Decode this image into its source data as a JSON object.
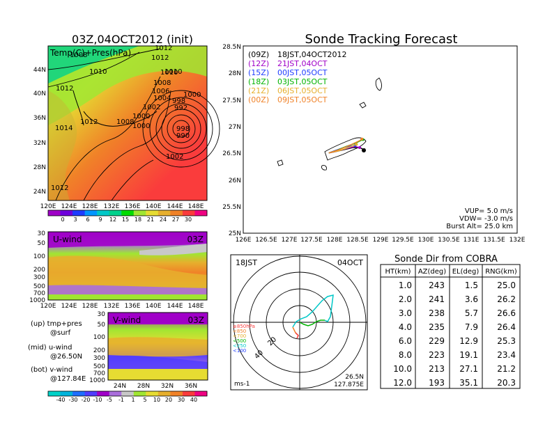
{
  "colors": {
    "temp_scale": [
      "#a000c8",
      "#6e00dc",
      "#1e3cff",
      "#0096ff",
      "#00c8c8",
      "#00d28c",
      "#00dc00",
      "#a0e632",
      "#e6dc32",
      "#e6af2d",
      "#f08228",
      "#fa3c3c",
      "#f00082"
    ],
    "wind_scale": [
      "#00d2c8",
      "#00b4dc",
      "#1e6eff",
      "#503cff",
      "#a000c8",
      "#aa6edc",
      "#c8c8c8",
      "#a0e632",
      "#e6dc32",
      "#e6af2d",
      "#f08228",
      "#fa3c3c",
      "#f00082"
    ],
    "track_09z": "#000000",
    "track_12z": "#a000c8",
    "track_15z": "#1e3cff",
    "track_18z": "#00b400",
    "track_21z": "#e6af2d",
    "track_00z": "#f08228",
    "cobra_trace": "#00c8c8"
  },
  "pressure_map": {
    "title": "03Z,04OCT2012 (init)",
    "overlay_label": "Temp(C)+Pres(hPa)",
    "lat_labels": [
      "44N",
      "40N",
      "36N",
      "32N",
      "28N",
      "24N"
    ],
    "lon_labels": [
      "120E",
      "124E",
      "128E",
      "132E",
      "136E",
      "140E",
      "144E",
      "148E"
    ],
    "isobar_labels": [
      "1008",
      "1010",
      "1012",
      "1010",
      "1012",
      "1012",
      "1008",
      "1014",
      "1012",
      "1010",
      "1008",
      "1006",
      "1004",
      "1002",
      "1000",
      "1000",
      "998",
      "992",
      "998",
      "990",
      "1002",
      "1012",
      "1000"
    ],
    "colorbar_labels": [
      "0",
      "3",
      "6",
      "9",
      "12",
      "15",
      "18",
      "21",
      "24",
      "27",
      "30"
    ]
  },
  "u_wind": {
    "title": "U-wind",
    "time": "03Z",
    "level_labels": [
      "30",
      "50",
      "100",
      "200",
      "300",
      "500",
      "700",
      "1000"
    ],
    "lon_labels": [
      "120E",
      "124E",
      "128E",
      "132E",
      "136E",
      "140E",
      "144E",
      "148E"
    ]
  },
  "v_wind": {
    "title": "V-wind",
    "time": "03Z",
    "level_labels": [
      "30",
      "50",
      "100",
      "200",
      "300",
      "500",
      "700",
      "1000"
    ],
    "lat_labels": [
      "24N",
      "28N",
      "32N",
      "36N"
    ]
  },
  "notes": {
    "line1a": "(up) tmp+pres",
    "line1b": "@surf",
    "line2a": "(mid) u-wind",
    "line2b": "@26.50N",
    "line3a": "(bot) v-wind",
    "line3b": "@127.84E"
  },
  "wind_colorbar_labels": [
    "-40",
    "-30",
    "-20",
    "-10",
    "-5",
    "-1",
    "1",
    "5",
    "10",
    "20",
    "30",
    "40"
  ],
  "track": {
    "title": "Sonde Tracking Forecast",
    "lat_labels": [
      "28.5N",
      "28N",
      "27.5N",
      "27N",
      "26.5N",
      "26N",
      "25.5N",
      "25N"
    ],
    "lon_labels": [
      "126E",
      "126.5E",
      "127E",
      "127.5E",
      "128E",
      "128.5E",
      "129E",
      "129.5E",
      "130E",
      "130.5E",
      "131E",
      "131.5E",
      "132E"
    ],
    "legend": [
      {
        "code": "(09Z)",
        "time": "18JST,04OCT2012"
      },
      {
        "code": "(12Z)",
        "time": "21JST,04OCT"
      },
      {
        "code": "(15Z)",
        "time": "00JST,05OCT"
      },
      {
        "code": "(18Z)",
        "time": "03JST,05OCT"
      },
      {
        "code": "(21Z)",
        "time": "06JST,05OCT"
      },
      {
        "code": "(00Z)",
        "time": "09JST,05OCT"
      }
    ],
    "vup": "VUP=  5.0  m/s",
    "vdw": "VDW= -3.0  m/s",
    "burst": "Burst Alt= 25.0  km"
  },
  "polar": {
    "time_label": "18JST",
    "date_label": "04OCT",
    "ring_labels": [
      "20",
      "40"
    ],
    "legend": [
      "≥850hPa",
      "<850",
      "<700",
      "<500",
      "<250",
      "<100"
    ],
    "units": "ms-1",
    "lat": "26.5N",
    "lon": "127.875E"
  },
  "cobra": {
    "title": "Sonde Dir from COBRA",
    "headers": [
      "HT(km)",
      "AZ(deg)",
      "EL(deg)",
      "RNG(km)"
    ],
    "rows": [
      [
        "1.0",
        "243",
        "1.5",
        "25.0"
      ],
      [
        "2.0",
        "241",
        "3.6",
        "26.2"
      ],
      [
        "3.0",
        "238",
        "5.7",
        "26.6"
      ],
      [
        "4.0",
        "235",
        "7.9",
        "26.4"
      ],
      [
        "6.0",
        "229",
        "12.9",
        "25.3"
      ],
      [
        "8.0",
        "223",
        "19.1",
        "23.4"
      ],
      [
        "10.0",
        "213",
        "27.1",
        "21.2"
      ],
      [
        "12.0",
        "193",
        "35.1",
        "20.3"
      ]
    ]
  },
  "chart_data": [
    {
      "type": "heatmap",
      "title": "03Z,04OCT2012 (init)",
      "xlabel": "",
      "ylabel": "",
      "x_range": [
        "120E",
        "150E"
      ],
      "y_range": [
        "22N",
        "47N"
      ],
      "overlay": "Temp(C)+Pres(hPa)",
      "colorbar": [
        0,
        3,
        6,
        9,
        12,
        15,
        18,
        21,
        24,
        27,
        30
      ],
      "isobars_hpa": [
        990,
        992,
        998,
        1000,
        1002,
        1004,
        1006,
        1008,
        1010,
        1012,
        1014
      ]
    },
    {
      "type": "heatmap",
      "title": "U-wind",
      "x_range": [
        "120E",
        "150E"
      ],
      "y_levels_hpa": [
        30,
        50,
        100,
        200,
        300,
        500,
        700,
        1000
      ],
      "colorbar": [
        -40,
        -30,
        -20,
        -10,
        -5,
        -1,
        1,
        5,
        10,
        20,
        30,
        40
      ]
    },
    {
      "type": "heatmap",
      "title": "V-wind",
      "x_range": [
        "22N",
        "39N"
      ],
      "y_levels_hpa": [
        30,
        50,
        100,
        200,
        300,
        500,
        700,
        1000
      ],
      "colorbar": [
        -40,
        -30,
        -20,
        -10,
        -5,
        -1,
        1,
        5,
        10,
        20,
        30,
        40
      ]
    },
    {
      "type": "line",
      "title": "Sonde Tracking Forecast",
      "xlim": [
        126,
        132
      ],
      "ylim": [
        25,
        28.5
      ],
      "series": [
        {
          "name": "(09Z)",
          "x": [
            127.875,
            128.0,
            128.2,
            128.4,
            128.55,
            128.65
          ],
          "y": [
            26.5,
            26.52,
            26.56,
            26.6,
            26.6,
            26.56
          ]
        },
        {
          "name": "(12Z)",
          "x": [
            127.875,
            128.05,
            128.25,
            128.45,
            128.55
          ],
          "y": [
            26.5,
            26.53,
            26.58,
            26.62,
            26.6
          ]
        },
        {
          "name": "(15Z)",
          "x": [
            127.875,
            128.0,
            128.2,
            128.35,
            128.45
          ],
          "y": [
            26.5,
            26.54,
            26.6,
            26.63,
            26.64
          ]
        },
        {
          "name": "(18Z)",
          "x": [
            127.875,
            128.05,
            128.25,
            128.45,
            128.62
          ],
          "y": [
            26.5,
            26.55,
            26.62,
            26.68,
            26.75
          ]
        },
        {
          "name": "(21Z)",
          "x": [
            127.875,
            128.1,
            128.3,
            128.48
          ],
          "y": [
            26.5,
            26.54,
            26.6,
            26.66
          ]
        },
        {
          "name": "(00Z)",
          "x": [
            127.875,
            128.1,
            128.35,
            128.55,
            128.6
          ],
          "y": [
            26.5,
            26.56,
            26.65,
            26.73,
            26.76
          ]
        }
      ]
    },
    {
      "type": "table",
      "title": "Sonde Dir from COBRA",
      "columns": [
        "HT(km)",
        "AZ(deg)",
        "EL(deg)",
        "RNG(km)"
      ],
      "rows": [
        [
          1.0,
          243,
          1.5,
          25.0
        ],
        [
          2.0,
          241,
          3.6,
          26.2
        ],
        [
          3.0,
          238,
          5.7,
          26.6
        ],
        [
          4.0,
          235,
          7.9,
          26.4
        ],
        [
          6.0,
          229,
          12.9,
          25.3
        ],
        [
          8.0,
          223,
          19.1,
          23.4
        ],
        [
          10.0,
          213,
          27.1,
          21.2
        ],
        [
          12.0,
          193,
          35.1,
          20.3
        ]
      ]
    }
  ]
}
